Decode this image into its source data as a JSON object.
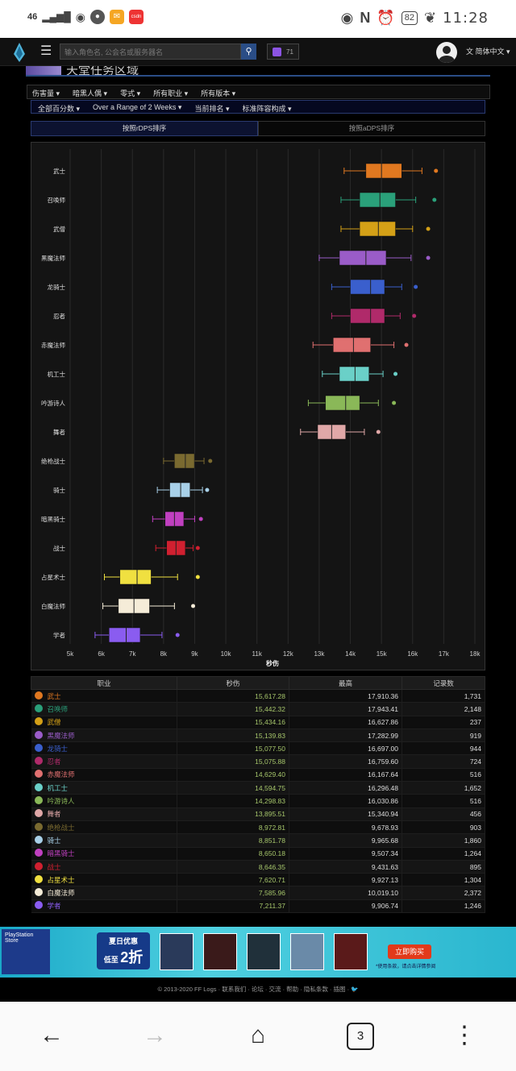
{
  "status_bar": {
    "network": "46",
    "battery": "82",
    "time": "11:28"
  },
  "nav": {
    "search_placeholder": "输入角色名, 公会名或服务器名",
    "twitch_count": "71",
    "language": "简体中文"
  },
  "zone": {
    "title": "天堂任务区域"
  },
  "filters_row1": [
    "伤害量 ▾",
    "暗黑人偶 ▾",
    "零式 ▾",
    "所有职业 ▾",
    "所有版本 ▾"
  ],
  "filters_row2": [
    "全部百分数 ▾",
    "Over a Range of 2 Weeks ▾",
    "当前排名 ▾",
    "标准阵容构成 ▾"
  ],
  "tabs": {
    "rdps": "按照rDPS排序",
    "adps": "按照aDPS排序"
  },
  "chart_data": {
    "type": "boxplot",
    "xlabel": "秒伤",
    "xlim": [
      5000,
      18000
    ],
    "xticks": [
      "5k",
      "6k",
      "7k",
      "8k",
      "9k",
      "10k",
      "11k",
      "12k",
      "13k",
      "14k",
      "15k",
      "16k",
      "17k",
      "18k"
    ],
    "series": [
      {
        "name": "武士",
        "color": "#e07820",
        "min": 13800,
        "q1": 14500,
        "median": 15000,
        "q3": 15650,
        "max": 16300,
        "outlier": 16750
      },
      {
        "name": "召唤师",
        "color": "#2aa07a",
        "min": 13700,
        "q1": 14300,
        "median": 14950,
        "q3": 15450,
        "max": 16100,
        "outlier": 16700
      },
      {
        "name": "武僧",
        "color": "#d4a017",
        "min": 13700,
        "q1": 14300,
        "median": 14900,
        "q3": 15450,
        "max": 16000,
        "outlier": 16500
      },
      {
        "name": "黑魔法师",
        "color": "#9a5cc8",
        "min": 13000,
        "q1": 13650,
        "median": 14500,
        "q3": 15150,
        "max": 15950,
        "outlier": 16500
      },
      {
        "name": "龙骑士",
        "color": "#3a5fcd",
        "min": 13400,
        "q1": 14000,
        "median": 14650,
        "q3": 15100,
        "max": 15650,
        "outlier": 16100
      },
      {
        "name": "忍者",
        "color": "#b02a6a",
        "min": 13400,
        "q1": 14000,
        "median": 14650,
        "q3": 15100,
        "max": 15600,
        "outlier": 16050
      },
      {
        "name": "赤魔法师",
        "color": "#e07070",
        "min": 12800,
        "q1": 13450,
        "median": 14100,
        "q3": 14650,
        "max": 15400,
        "outlier": 15800
      },
      {
        "name": "机工士",
        "color": "#6ad0c8",
        "min": 13100,
        "q1": 13650,
        "median": 14150,
        "q3": 14600,
        "max": 15050,
        "outlier": 15450
      },
      {
        "name": "吟游诗人",
        "color": "#8ab858",
        "min": 12650,
        "q1": 13200,
        "median": 13850,
        "q3": 14300,
        "max": 14900,
        "outlier": 15400
      },
      {
        "name": "舞者",
        "color": "#e0a8a8",
        "min": 12400,
        "q1": 12950,
        "median": 13400,
        "q3": 13850,
        "max": 14450,
        "outlier": 14900
      },
      {
        "name": "绝枪战士",
        "color": "#7a6a30",
        "min": 8000,
        "q1": 8350,
        "median": 8700,
        "q3": 8990,
        "max": 9300,
        "outlier": 9500
      },
      {
        "name": "骑士",
        "color": "#a8d0e8",
        "min": 7800,
        "q1": 8200,
        "median": 8550,
        "q3": 8850,
        "max": 9250,
        "outlier": 9400
      },
      {
        "name": "暗黑骑士",
        "color": "#c040c0",
        "min": 7650,
        "q1": 8050,
        "median": 8350,
        "q3": 8650,
        "max": 9000,
        "outlier": 9200
      },
      {
        "name": "战士",
        "color": "#d02030",
        "min": 7750,
        "q1": 8100,
        "median": 8400,
        "q3": 8700,
        "max": 8950,
        "outlier": 9100
      },
      {
        "name": "占星术士",
        "color": "#f0e040",
        "min": 6100,
        "q1": 6600,
        "median": 7150,
        "q3": 7600,
        "max": 8450,
        "outlier": 9100
      },
      {
        "name": "白魔法师",
        "color": "#f5ecd8",
        "min": 6050,
        "q1": 6550,
        "median": 7050,
        "q3": 7550,
        "max": 8350,
        "outlier": 8950
      },
      {
        "name": "学者",
        "color": "#8a5cf0",
        "min": 5800,
        "q1": 6250,
        "median": 6800,
        "q3": 7250,
        "max": 7950,
        "outlier": 8450
      }
    ]
  },
  "table": {
    "headers": [
      "职业",
      "秒伤",
      "最高",
      "记录数"
    ],
    "rows": [
      {
        "job": "武士",
        "color": "#e07820",
        "rdps": "15,617.28",
        "max": "17,910.36",
        "count": "1,731"
      },
      {
        "job": "召唤师",
        "color": "#2aa07a",
        "rdps": "15,442.32",
        "max": "17,943.41",
        "count": "2,148"
      },
      {
        "job": "武僧",
        "color": "#d4a017",
        "rdps": "15,434.16",
        "max": "16,627.86",
        "count": "237"
      },
      {
        "job": "黑魔法师",
        "color": "#9a5cc8",
        "rdps": "15,139.83",
        "max": "17,282.99",
        "count": "919"
      },
      {
        "job": "龙骑士",
        "color": "#3a5fcd",
        "rdps": "15,077.50",
        "max": "16,697.00",
        "count": "944"
      },
      {
        "job": "忍者",
        "color": "#b02a6a",
        "rdps": "15,075.88",
        "max": "16,759.60",
        "count": "724"
      },
      {
        "job": "赤魔法师",
        "color": "#e07070",
        "rdps": "14,629.40",
        "max": "16,167.64",
        "count": "516"
      },
      {
        "job": "机工士",
        "color": "#6ad0c8",
        "rdps": "14,594.75",
        "max": "16,296.48",
        "count": "1,652"
      },
      {
        "job": "吟游诗人",
        "color": "#8ab858",
        "rdps": "14,298.83",
        "max": "16,030.86",
        "count": "516"
      },
      {
        "job": "舞者",
        "color": "#e0a8a8",
        "rdps": "13,895.51",
        "max": "15,340.94",
        "count": "456"
      },
      {
        "job": "绝枪战士",
        "color": "#7a6a30",
        "rdps": "8,972.81",
        "max": "9,678.93",
        "count": "903"
      },
      {
        "job": "骑士",
        "color": "#a8d0e8",
        "rdps": "8,851.78",
        "max": "9,965.68",
        "count": "1,860"
      },
      {
        "job": "暗黑骑士",
        "color": "#c040c0",
        "rdps": "8,650.18",
        "max": "9,507.34",
        "count": "1,264"
      },
      {
        "job": "战士",
        "color": "#d02030",
        "rdps": "8,646.35",
        "max": "9,431.63",
        "count": "895"
      },
      {
        "job": "占星术士",
        "color": "#f0e040",
        "rdps": "7,620.71",
        "max": "9,927.13",
        "count": "1,304"
      },
      {
        "job": "白魔法师",
        "color": "#f5ecd8",
        "rdps": "7,585.96",
        "max": "10,019.10",
        "count": "2,372"
      },
      {
        "job": "学者",
        "color": "#8a5cf0",
        "rdps": "7,211.37",
        "max": "9,906.74",
        "count": "1,246"
      }
    ]
  },
  "ad": {
    "ps_label": "PlayStation Store",
    "promo_title": "夏日优惠",
    "promo_low": "低至",
    "promo_big": "2折",
    "buy": "立即购买",
    "note": "*使用条款，请点击详情参阅"
  },
  "footer": "© 2013-2020 FF Logs · 联系我们 · 论坛 · 交流 · 帮助 · 隐私条款 · 插图 · ",
  "bottom_nav": {
    "tab_count": "3"
  }
}
